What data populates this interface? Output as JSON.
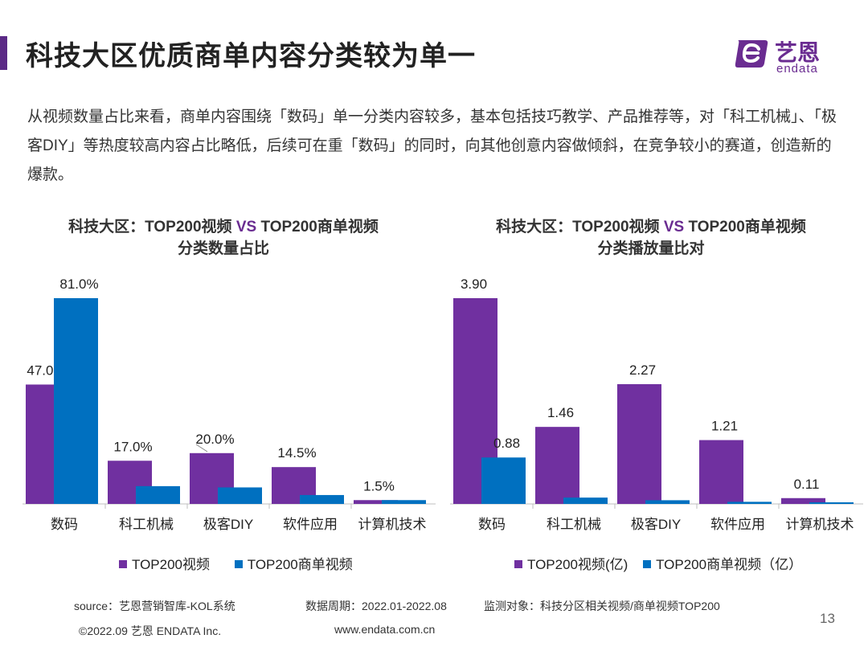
{
  "header": {
    "title": "科技大区优质商单内容分类较为单一",
    "logo_cn": "艺恩",
    "logo_en": "endata"
  },
  "intro": "从视频数量占比来看，商单内容围绕「数码」单一分类内容较多，基本包括技巧教学、产品推荐等，对「科工机械」、「极客DIY」等热度较高内容占比略低，后续可在重「数码」的同时，向其他创意内容做倾斜，在竞争较小的赛道，创造新的爆款。",
  "colors": {
    "purple": "#7030a0",
    "blue": "#0070c0",
    "axis": "#bfbfbf",
    "brand": "#6a2c91"
  },
  "chart_data": [
    {
      "type": "bar",
      "title_a": "科技大区：TOP200视频 ",
      "title_vs": "VS",
      "title_b": " TOP200商单视频",
      "title_line2": "分类数量占比",
      "categories": [
        "数码",
        "科工机械",
        "极客DIY",
        "软件应用",
        "计算机技术"
      ],
      "series": [
        {
          "name": "TOP200视频",
          "values": [
            47.0,
            17.0,
            20.0,
            14.5,
            1.5
          ],
          "labels": [
            "47.0%",
            "17.0%",
            "20.0%",
            "14.5%",
            "1.5%"
          ]
        },
        {
          "name": "TOP200商单视频",
          "values": [
            81.0,
            7.0,
            6.5,
            3.5,
            1.5
          ],
          "labels": [
            "81.0%",
            "",
            "",
            "",
            ""
          ]
        }
      ],
      "ylim": [
        0,
        81
      ]
    },
    {
      "type": "bar",
      "title_a": "科技大区：TOP200视频 ",
      "title_vs": "VS",
      "title_b": " TOP200商单视频",
      "title_line2": "分类播放量比对",
      "categories": [
        "数码",
        "科工机械",
        "极客DIY",
        "软件应用",
        "计算机技术"
      ],
      "series": [
        {
          "name": "TOP200视频(亿)",
          "values": [
            3.9,
            1.46,
            2.27,
            1.21,
            0.11
          ],
          "labels": [
            "3.90",
            "1.46",
            "2.27",
            "1.21",
            "0.11"
          ]
        },
        {
          "name": "TOP200商单视频（亿）",
          "values": [
            0.88,
            0.12,
            0.07,
            0.04,
            0.02
          ],
          "labels": [
            "0.88",
            "",
            "",
            "",
            ""
          ]
        }
      ],
      "ylim": [
        0,
        3.9
      ]
    }
  ],
  "footer": {
    "source": "source：艺恩营销智库-KOL系统",
    "period": "数据周期：2022.01-2022.08",
    "target": "监测对象：科技分区相关视频/商单视频TOP200",
    "copyright": "©2022.09 艺恩 ENDATA Inc.",
    "website": "www.endata.com.cn",
    "page": "13"
  }
}
